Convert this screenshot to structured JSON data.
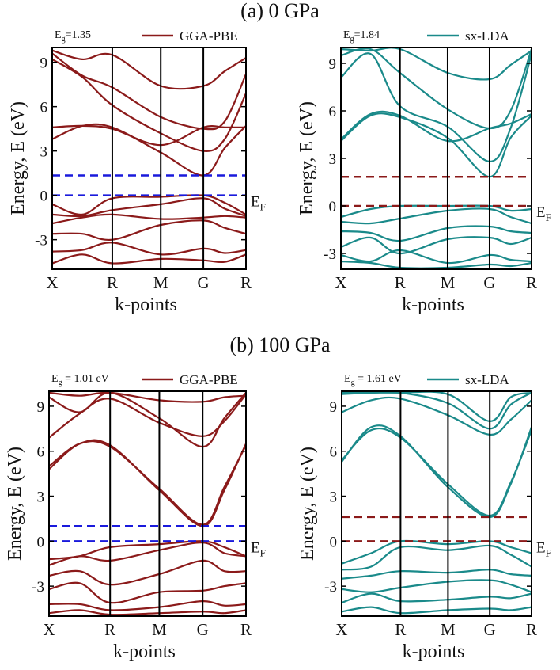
{
  "chart_data": [
    {
      "type": "line",
      "section_title": "(a)  0 GPa",
      "eg_label": "E",
      "eg_sub": "g",
      "eg_value": "=1.35",
      "legend": "GGA-PBE",
      "color": "#8b1a1a",
      "gap_line_color": "#1a1adc",
      "gap_ev": 1.35,
      "fermi_label": "E",
      "fermi_sub": "F",
      "ylabel": "Energy, E (eV)",
      "xlabel": "k-points",
      "ylim": [
        -5,
        10
      ],
      "yticks": [
        -3,
        0,
        3,
        6,
        9
      ],
      "kpoints": [
        {
          "label": "X",
          "pos": 0
        },
        {
          "label": "R",
          "pos": 0.31
        },
        {
          "label": "M",
          "pos": 0.56
        },
        {
          "label": "G",
          "pos": 0.78
        },
        {
          "label": "R",
          "pos": 1.0
        }
      ],
      "bands": [
        [
          9.2,
          8.0,
          6.1,
          4.2,
          3.0,
          3.8,
          6.9
        ],
        [
          9.6,
          8.1,
          7.3,
          5.3,
          4.5,
          5.0,
          8.2
        ],
        [
          9.8,
          9.2,
          9.5,
          7.4,
          7.4,
          8.4,
          9.3
        ],
        [
          3.8,
          4.7,
          4.6,
          2.9,
          1.35,
          3.2,
          4.7
        ],
        [
          4.6,
          4.7,
          4.5,
          3.4,
          4.6,
          4.6,
          4.6
        ],
        [
          -0.6,
          -1.3,
          -0.2,
          -0.1,
          0.0,
          -0.5,
          -1.3
        ],
        [
          -1.3,
          -1.4,
          -1.0,
          -0.6,
          -0.2,
          -0.9,
          -1.4
        ],
        [
          -1.9,
          -1.5,
          -1.3,
          -1.6,
          -1.5,
          -1.4,
          -1.5
        ],
        [
          -2.6,
          -2.6,
          -3.0,
          -2.0,
          -1.7,
          -2.2,
          -2.6
        ],
        [
          -3.8,
          -3.7,
          -3.2,
          -4.0,
          -3.6,
          -3.9,
          -3.7
        ],
        [
          -4.6,
          -4.0,
          -4.6,
          -4.3,
          -4.4,
          -4.5,
          -4.0
        ]
      ]
    },
    {
      "type": "line",
      "section_title": "",
      "eg_label": "E",
      "eg_sub": "g",
      "eg_value": "=1.84",
      "legend": "sx-LDA",
      "color": "#1a8a8a",
      "gap_line_color": "#8b1a1a",
      "gap_ev": 1.84,
      "fermi_label": "E",
      "fermi_sub": "F",
      "ylabel": "Energy, E (eV)",
      "xlabel": "k-points",
      "ylim": [
        -4,
        10
      ],
      "yticks": [
        -3,
        0,
        3,
        6,
        9
      ],
      "kpoints": [
        {
          "label": "X",
          "pos": 0
        },
        {
          "label": "R",
          "pos": 0.31
        },
        {
          "label": "M",
          "pos": 0.56
        },
        {
          "label": "G",
          "pos": 0.78
        },
        {
          "label": "R",
          "pos": 1.0
        }
      ],
      "bands": [
        [
          8.1,
          9.6,
          6.3,
          5.0,
          2.8,
          4.9,
          9.6
        ],
        [
          9.5,
          9.9,
          8.4,
          6.1,
          4.9,
          6.0,
          9.9
        ],
        [
          9.9,
          9.8,
          9.9,
          8.4,
          8.0,
          8.9,
          9.8
        ],
        [
          4.1,
          5.7,
          5.6,
          4.3,
          1.84,
          4.3,
          5.7
        ],
        [
          4.2,
          5.8,
          5.7,
          4.1,
          4.9,
          5.2,
          5.8
        ],
        [
          -0.7,
          -0.2,
          0.0,
          0.0,
          0.0,
          -0.3,
          -0.2
        ],
        [
          -1.0,
          -1.1,
          -0.8,
          -0.3,
          -0.2,
          -0.7,
          -1.1
        ],
        [
          -1.6,
          -1.7,
          -2.2,
          -1.4,
          -1.3,
          -1.6,
          -1.7
        ],
        [
          -2.6,
          -2.0,
          -3.0,
          -2.1,
          -2.0,
          -2.4,
          -2.0
        ],
        [
          -3.1,
          -3.5,
          -2.8,
          -3.6,
          -3.1,
          -3.4,
          -3.5
        ],
        [
          -3.5,
          -3.6,
          -3.9,
          -3.9,
          -3.7,
          -3.8,
          -3.6
        ]
      ]
    },
    {
      "type": "line",
      "section_title": "(b)  100 GPa",
      "eg_label": "E",
      "eg_sub": "g",
      "eg_value": " = 1.01 eV",
      "legend": "GGA-PBE",
      "color": "#8b1a1a",
      "gap_line_color": "#1a1adc",
      "gap_ev": 1.01,
      "fermi_label": "E",
      "fermi_sub": "F",
      "ylabel": "Energy, E (eV)",
      "xlabel": "k-points",
      "ylim": [
        -5,
        10
      ],
      "yticks": [
        -3,
        0,
        3,
        6,
        9
      ],
      "kpoints": [
        {
          "label": "X",
          "pos": 0
        },
        {
          "label": "R",
          "pos": 0.31
        },
        {
          "label": "M",
          "pos": 0.56
        },
        {
          "label": "G",
          "pos": 0.78
        },
        {
          "label": "R",
          "pos": 1.0
        }
      ],
      "bands": [
        [
          6.9,
          8.5,
          9.5,
          7.9,
          7.0,
          8.0,
          9.8
        ],
        [
          9.6,
          8.6,
          9.9,
          8.2,
          6.3,
          8.2,
          9.9
        ],
        [
          9.9,
          9.7,
          9.9,
          9.4,
          9.3,
          9.6,
          9.7
        ],
        [
          4.8,
          6.5,
          6.4,
          3.4,
          1.01,
          3.4,
          6.5
        ],
        [
          5.0,
          6.5,
          6.3,
          3.5,
          1.1,
          3.6,
          6.4
        ],
        [
          -1.2,
          -1.0,
          -0.4,
          -0.2,
          0.0,
          -0.4,
          -1.0
        ],
        [
          -1.6,
          -1.0,
          -1.3,
          -0.6,
          -0.1,
          -0.8,
          -1.0
        ],
        [
          -2.3,
          -2.0,
          -2.9,
          -2.2,
          -1.3,
          -2.0,
          -2.0
        ],
        [
          -3.2,
          -2.8,
          -4.1,
          -3.4,
          -3.3,
          -3.0,
          -2.8
        ],
        [
          -4.2,
          -4.2,
          -4.6,
          -4.4,
          -4.0,
          -4.3,
          -4.2
        ],
        [
          -4.8,
          -4.6,
          -4.9,
          -4.8,
          -4.7,
          -4.8,
          -4.6
        ]
      ]
    },
    {
      "type": "line",
      "section_title": "",
      "eg_label": "E",
      "eg_sub": "g",
      "eg_value": " = 1.61 eV",
      "legend": "sx-LDA",
      "color": "#1a8a8a",
      "gap_line_color": "#8b1a1a",
      "gap_ev": 1.61,
      "fermi_label": "E",
      "fermi_sub": "F",
      "ylabel": "Energy, E (eV)",
      "xlabel": "k-points",
      "ylim": [
        -5,
        10
      ],
      "yticks": [
        -3,
        0,
        3,
        6,
        9
      ],
      "kpoints": [
        {
          "label": "X",
          "pos": 0
        },
        {
          "label": "R",
          "pos": 0.31
        },
        {
          "label": "M",
          "pos": 0.56
        },
        {
          "label": "G",
          "pos": 0.78
        },
        {
          "label": "R",
          "pos": 1.0
        }
      ],
      "bands": [
        [
          5.3,
          7.6,
          7.0,
          3.6,
          1.61,
          3.8,
          7.6
        ],
        [
          5.4,
          7.4,
          6.9,
          3.8,
          1.7,
          3.9,
          7.4
        ],
        [
          8.6,
          9.4,
          9.5,
          8.4,
          7.1,
          8.1,
          9.4
        ],
        [
          9.8,
          9.9,
          9.9,
          9.2,
          7.5,
          9.1,
          9.9
        ],
        [
          9.9,
          9.9,
          9.9,
          9.8,
          8.0,
          9.6,
          9.9
        ],
        [
          -1.5,
          -0.8,
          0.0,
          -0.2,
          0.0,
          -0.4,
          -0.8
        ],
        [
          -1.9,
          -1.7,
          -0.4,
          -0.6,
          -0.3,
          -0.9,
          -1.7
        ],
        [
          -2.5,
          -2.3,
          -2.0,
          -2.1,
          -1.9,
          -2.2,
          -2.3
        ],
        [
          -3.2,
          -3.4,
          -3.1,
          -2.7,
          -2.6,
          -2.9,
          -3.4
        ],
        [
          -4.1,
          -3.5,
          -4.0,
          -3.9,
          -3.7,
          -3.8,
          -3.5
        ],
        [
          -4.7,
          -4.4,
          -4.8,
          -4.6,
          -4.5,
          -4.6,
          -4.4
        ]
      ]
    }
  ]
}
